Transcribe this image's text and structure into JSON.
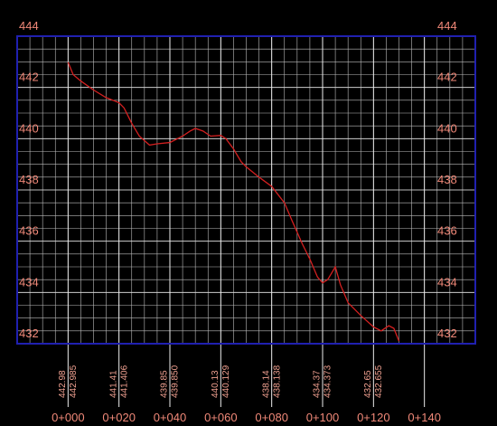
{
  "chart_data": {
    "type": "line",
    "x": [
      0,
      2,
      5,
      10,
      15,
      20,
      22,
      25,
      28,
      32,
      35,
      40,
      45,
      48,
      50,
      53,
      56,
      60,
      62,
      65,
      68,
      70,
      75,
      80,
      85,
      88,
      92,
      95,
      98,
      100,
      102,
      105,
      107,
      110,
      115,
      120,
      123,
      126,
      128,
      130
    ],
    "values": [
      442.985,
      442.5,
      442.25,
      441.9,
      441.6,
      441.406,
      441.2,
      440.6,
      440.1,
      439.75,
      439.8,
      439.85,
      440.1,
      440.3,
      440.4,
      440.3,
      440.1,
      440.129,
      440.0,
      439.6,
      439.1,
      438.9,
      438.5,
      438.138,
      437.5,
      436.8,
      435.9,
      435.3,
      434.6,
      434.373,
      434.5,
      435.0,
      434.3,
      433.6,
      433.1,
      432.655,
      432.5,
      432.7,
      432.6,
      432.1
    ],
    "color": "#d42020",
    "xlim": [
      -20,
      160
    ],
    "ylim": [
      432,
      444
    ],
    "xticks": [
      {
        "value": 0,
        "label": "0+000"
      },
      {
        "value": 20,
        "label": "0+020"
      },
      {
        "value": 40,
        "label": "0+040"
      },
      {
        "value": 60,
        "label": "0+060"
      },
      {
        "value": 80,
        "label": "0+080"
      },
      {
        "value": 100,
        "label": "0+100"
      },
      {
        "value": 120,
        "label": "0+120"
      },
      {
        "value": 140,
        "label": "0+140"
      }
    ],
    "yticks": [
      432,
      434,
      436,
      438,
      440,
      442,
      444
    ],
    "grid": true,
    "table": {
      "rows": [
        [
          "442.98",
          "441.41",
          "439.85",
          "440.13",
          "438.14",
          "434.37",
          "432.65"
        ],
        [
          "442.985",
          "441.406",
          "439.850",
          "440.129",
          "438.138",
          "434.373",
          "432.655"
        ]
      ]
    }
  }
}
